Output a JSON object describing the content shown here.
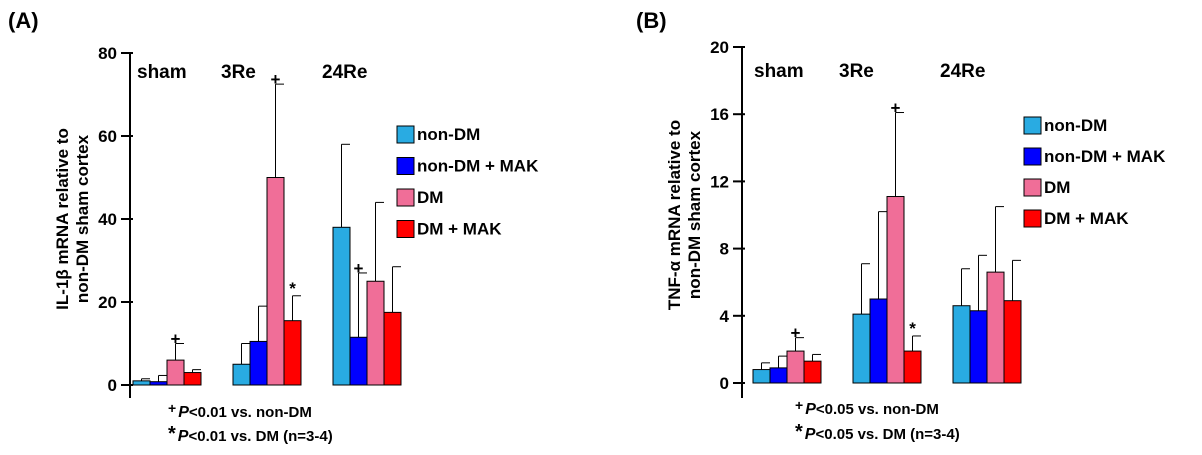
{
  "colors": {
    "non-DM": "#29abe2",
    "non-DM + MAK": "#0000ff",
    "DM": "#f06e98",
    "DM + MAK": "#ff0000"
  },
  "chart_data": [
    {
      "type": "bar",
      "panel_label": "(A)",
      "ylabel": [
        "IL-1β  mRNA relative to",
        "non-DM sham cortex"
      ],
      "ylim": [
        0,
        80
      ],
      "yticks": [
        0,
        20,
        40,
        60,
        80
      ],
      "categories": [
        "sham",
        "3Re",
        "24Re"
      ],
      "series": [
        {
          "name": "non-DM",
          "values": [
            1,
            5,
            38
          ],
          "errors": [
            0.5,
            5,
            20
          ]
        },
        {
          "name": "non-DM + MAK",
          "values": [
            0.8,
            10.5,
            11.5
          ],
          "errors": [
            1.5,
            8.5,
            15.5
          ]
        },
        {
          "name": "DM",
          "values": [
            6,
            50,
            25
          ],
          "errors": [
            4,
            22.5,
            19
          ]
        },
        {
          "name": "DM + MAK",
          "values": [
            3,
            15.5,
            17.5
          ],
          "errors": [
            0.7,
            6,
            11
          ]
        }
      ],
      "legend_position": "right",
      "annotations": [
        {
          "symbol": "+",
          "category": "sham",
          "series": "DM"
        },
        {
          "symbol": "+",
          "category": "3Re",
          "series": "DM"
        },
        {
          "symbol": "*",
          "category": "3Re",
          "series": "DM + MAK"
        },
        {
          "symbol": "+",
          "category": "24Re",
          "series": "non-DM + MAK"
        }
      ],
      "footnotes": [
        {
          "symbol": "+",
          "p": "P",
          "text": "<0.01 vs. non-DM"
        },
        {
          "symbol": "*",
          "p": "P",
          "text": "<0.01 vs. DM  (n=3-4)"
        }
      ]
    },
    {
      "type": "bar",
      "panel_label": "(B)",
      "ylabel": [
        "TNF-α  mRNA relative to",
        "non-DM sham cortex"
      ],
      "ylim": [
        0,
        20
      ],
      "yticks": [
        0,
        4,
        8,
        12,
        16,
        20
      ],
      "categories": [
        "sham",
        "3Re",
        "24Re"
      ],
      "series": [
        {
          "name": "non-DM",
          "values": [
            0.8,
            4.1,
            4.6
          ],
          "errors": [
            0.4,
            3,
            2.2
          ]
        },
        {
          "name": "non-DM + MAK",
          "values": [
            0.9,
            5,
            4.3
          ],
          "errors": [
            0.7,
            5.2,
            3.3
          ]
        },
        {
          "name": "DM",
          "values": [
            1.9,
            11.1,
            6.6
          ],
          "errors": [
            0.8,
            5,
            3.9
          ]
        },
        {
          "name": "DM + MAK",
          "values": [
            1.3,
            1.9,
            4.9
          ],
          "errors": [
            0.4,
            0.9,
            2.4
          ]
        }
      ],
      "legend_position": "right",
      "annotations": [
        {
          "symbol": "+",
          "category": "sham",
          "series": "DM"
        },
        {
          "symbol": "+",
          "category": "3Re",
          "series": "DM"
        },
        {
          "symbol": "*",
          "category": "3Re",
          "series": "DM + MAK"
        }
      ],
      "footnotes": [
        {
          "symbol": "+",
          "p": "P",
          "text": "<0.05 vs. non-DM"
        },
        {
          "symbol": "*",
          "p": "P",
          "text": "<0.05 vs. DM  (n=3-4)"
        }
      ]
    }
  ]
}
